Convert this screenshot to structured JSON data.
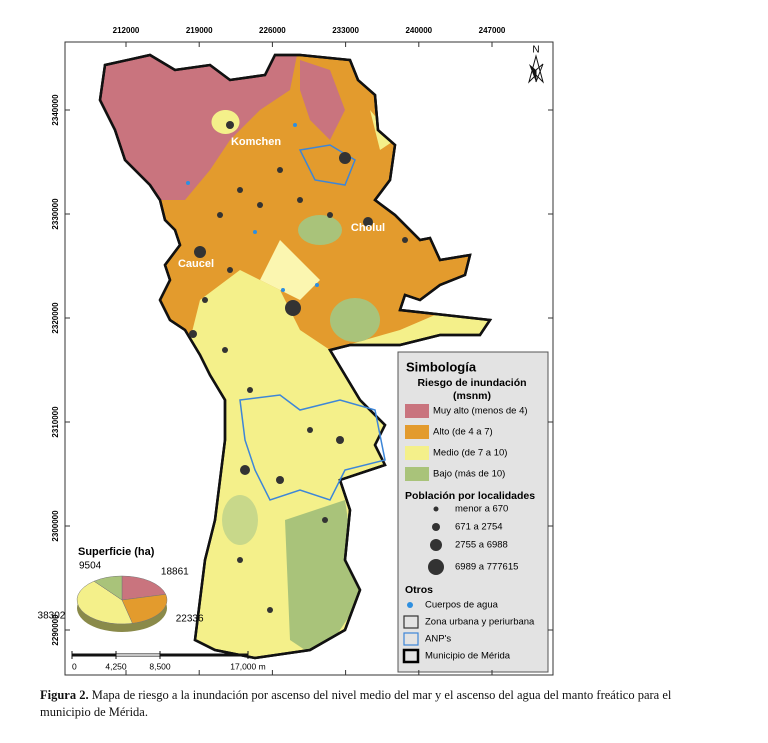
{
  "figure": {
    "north": "N",
    "place_labels": [
      "Komchen",
      "Cholul",
      "Caucel"
    ],
    "xticks": [
      212000,
      219000,
      226000,
      233000,
      240000,
      247000
    ],
    "yticks": [
      2340000,
      2330000,
      2320000,
      2310000,
      2300000,
      2290000
    ],
    "legend": {
      "title": "Simbología",
      "risk_title": "Riesgo de inundación",
      "risk_unit": "(msnm)",
      "risk_classes": [
        {
          "label": "Muy alto (menos de 4)",
          "color": "#c9747e"
        },
        {
          "label": "Alto (de 4 a 7)",
          "color": "#e39b2d"
        },
        {
          "label": "Medio (de 7 a 10)",
          "color": "#f4f08a"
        },
        {
          "label": "Bajo (más de 10)",
          "color": "#a9c37a"
        }
      ],
      "population_title": "Población por localidades",
      "population_classes": [
        "menor a 670",
        "671 a 2754",
        "2755 a 6988",
        "6989 a 777615"
      ],
      "others_title": "Otros",
      "others": [
        "Cuerpos de agua",
        "Zona urbana y periurbana",
        "ANP's",
        "Municipio de Mérida"
      ]
    },
    "pie": {
      "title": "Superficie (ha)",
      "values": [
        18861,
        22336,
        38302,
        9504
      ],
      "colors": [
        "#c9747e",
        "#e39b2d",
        "#f4f08a",
        "#a9c37a"
      ]
    },
    "scale": {
      "ticks": [
        0,
        {
          "value": 4250,
          "label": "4,250"
        },
        {
          "value": 8500,
          "label": "8,500"
        },
        {
          "value": 17000,
          "label": "17,000 m"
        }
      ]
    }
  },
  "caption": {
    "label": "Figura 2.",
    "text": "Mapa de riesgo a la inundación por ascenso del nivel medio del mar y el ascenso del agua del manto freático para el municipio de Mérida."
  }
}
